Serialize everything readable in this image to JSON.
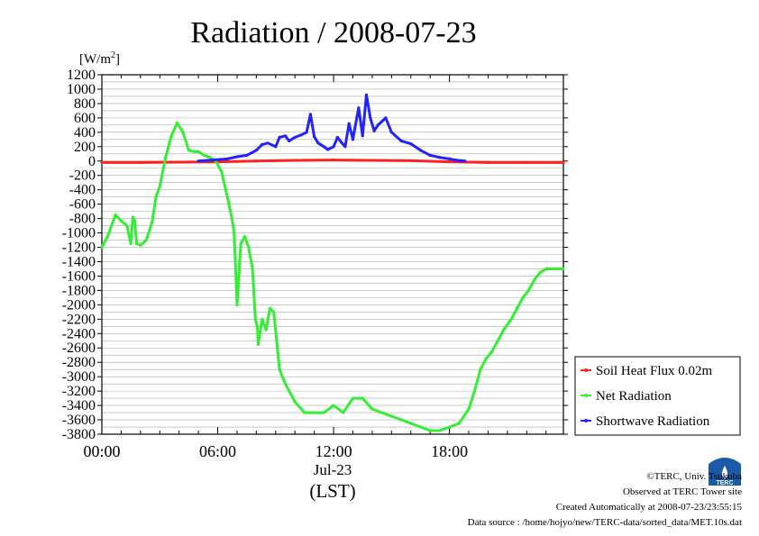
{
  "chart_data": {
    "type": "line",
    "title": "Radiation / 2008-07-23",
    "ylabel": "[W/m2]",
    "ylabel_base": "[W/m",
    "ylabel_sup": "2",
    "ylabel_close": "]",
    "xlabel_date": "Jul-23",
    "xlabel_tz": "(LST)",
    "x_unit": "hour",
    "xlim": [
      0,
      23.9
    ],
    "ylim": [
      -3800,
      1200
    ],
    "grid": true,
    "x_ticks": [
      {
        "value": 0,
        "label": "00:00"
      },
      {
        "value": 6,
        "label": "06:00"
      },
      {
        "value": 12,
        "label": "12:00"
      },
      {
        "value": 18,
        "label": "18:00"
      }
    ],
    "y_ticks": [
      1200,
      1000,
      800,
      600,
      400,
      200,
      0,
      -200,
      -400,
      -600,
      -800,
      -1000,
      -1200,
      -1400,
      -1600,
      -1800,
      -2000,
      -2200,
      -2400,
      -2600,
      -2800,
      -3000,
      -3200,
      -3400,
      -3600,
      -3800
    ],
    "legend_position": "right",
    "series": [
      {
        "name": "Soil Heat Flux 0.02m",
        "color": "#ff2020",
        "x": [
          0,
          2,
          4,
          6,
          8,
          10,
          12,
          14,
          16,
          18,
          20,
          22,
          23.9
        ],
        "y": [
          -20,
          -20,
          -15,
          -10,
          0,
          10,
          15,
          10,
          5,
          -10,
          -20,
          -20,
          -20
        ]
      },
      {
        "name": "Net Radiation",
        "color": "#33ee33",
        "x": [
          0,
          0.3,
          0.7,
          1.0,
          1.3,
          1.5,
          1.6,
          1.7,
          1.8,
          2.0,
          2.3,
          2.6,
          2.8,
          3.0,
          3.3,
          3.6,
          3.9,
          4.2,
          4.5,
          4.8,
          5.0,
          5.3,
          5.6,
          5.9,
          6.2,
          6.5,
          6.7,
          6.8,
          6.85,
          6.9,
          7.0,
          7.2,
          7.4,
          7.6,
          7.8,
          7.95,
          8.05,
          8.1,
          8.3,
          8.5,
          8.7,
          8.9,
          9.2,
          9.5,
          10.0,
          10.5,
          11.0,
          11.5,
          12.0,
          12.5,
          13.0,
          13.5,
          14.0,
          14.5,
          15.0,
          15.5,
          16.0,
          16.5,
          17.0,
          17.5,
          18.0,
          18.5,
          19.0,
          19.3,
          19.6,
          19.9,
          20.2,
          20.5,
          20.8,
          21.2,
          21.5,
          21.8,
          22.1,
          22.4,
          22.7,
          23.0,
          23.3,
          23.6,
          23.9
        ],
        "y": [
          -1200,
          -1050,
          -750,
          -830,
          -900,
          -1150,
          -780,
          -830,
          -1150,
          -1170,
          -1100,
          -850,
          -500,
          -350,
          50,
          350,
          530,
          400,
          150,
          130,
          130,
          80,
          50,
          0,
          -150,
          -500,
          -750,
          -900,
          -1000,
          -1300,
          -2000,
          -1150,
          -1050,
          -1200,
          -1500,
          -2200,
          -2300,
          -2550,
          -2200,
          -2350,
          -2050,
          -2100,
          -2900,
          -3100,
          -3350,
          -3500,
          -3500,
          -3500,
          -3400,
          -3500,
          -3300,
          -3300,
          -3450,
          -3500,
          -3550,
          -3600,
          -3650,
          -3700,
          -3750,
          -3750,
          -3700,
          -3650,
          -3450,
          -3200,
          -2900,
          -2750,
          -2650,
          -2500,
          -2350,
          -2200,
          -2050,
          -1900,
          -1800,
          -1650,
          -1550,
          -1500,
          -1500,
          -1500,
          -1500
        ]
      },
      {
        "name": "Shortwave Radiation",
        "color": "#2222ff",
        "x": [
          5.0,
          5.5,
          6.0,
          6.5,
          7.0,
          7.5,
          8.0,
          8.3,
          8.6,
          9.0,
          9.2,
          9.5,
          9.7,
          10.0,
          10.3,
          10.6,
          10.8,
          11.0,
          11.2,
          11.5,
          11.7,
          12.0,
          12.2,
          12.4,
          12.6,
          12.8,
          13.0,
          13.1,
          13.3,
          13.5,
          13.7,
          13.9,
          14.1,
          14.3,
          14.5,
          14.7,
          15.0,
          15.5,
          16.0,
          16.5,
          17.0,
          17.5,
          18.0,
          18.3,
          18.6,
          18.8
        ],
        "y": [
          0,
          10,
          20,
          30,
          60,
          80,
          150,
          230,
          250,
          200,
          330,
          350,
          280,
          330,
          360,
          400,
          650,
          340,
          250,
          200,
          160,
          200,
          330,
          260,
          200,
          520,
          300,
          450,
          740,
          350,
          920,
          600,
          420,
          500,
          550,
          600,
          400,
          280,
          240,
          150,
          80,
          50,
          30,
          15,
          5,
          0
        ]
      }
    ]
  },
  "footer": {
    "copyright": "©TERC, Univ. Tsukuba",
    "observed": "Observed at TERC Tower site",
    "created": "Created Automatically at 2008-07-23/23:55:15",
    "source": "Data source : /home/hojyo/new/TERC-data/sorted_data/MET.10s.dat",
    "logo_text": "TERC"
  }
}
